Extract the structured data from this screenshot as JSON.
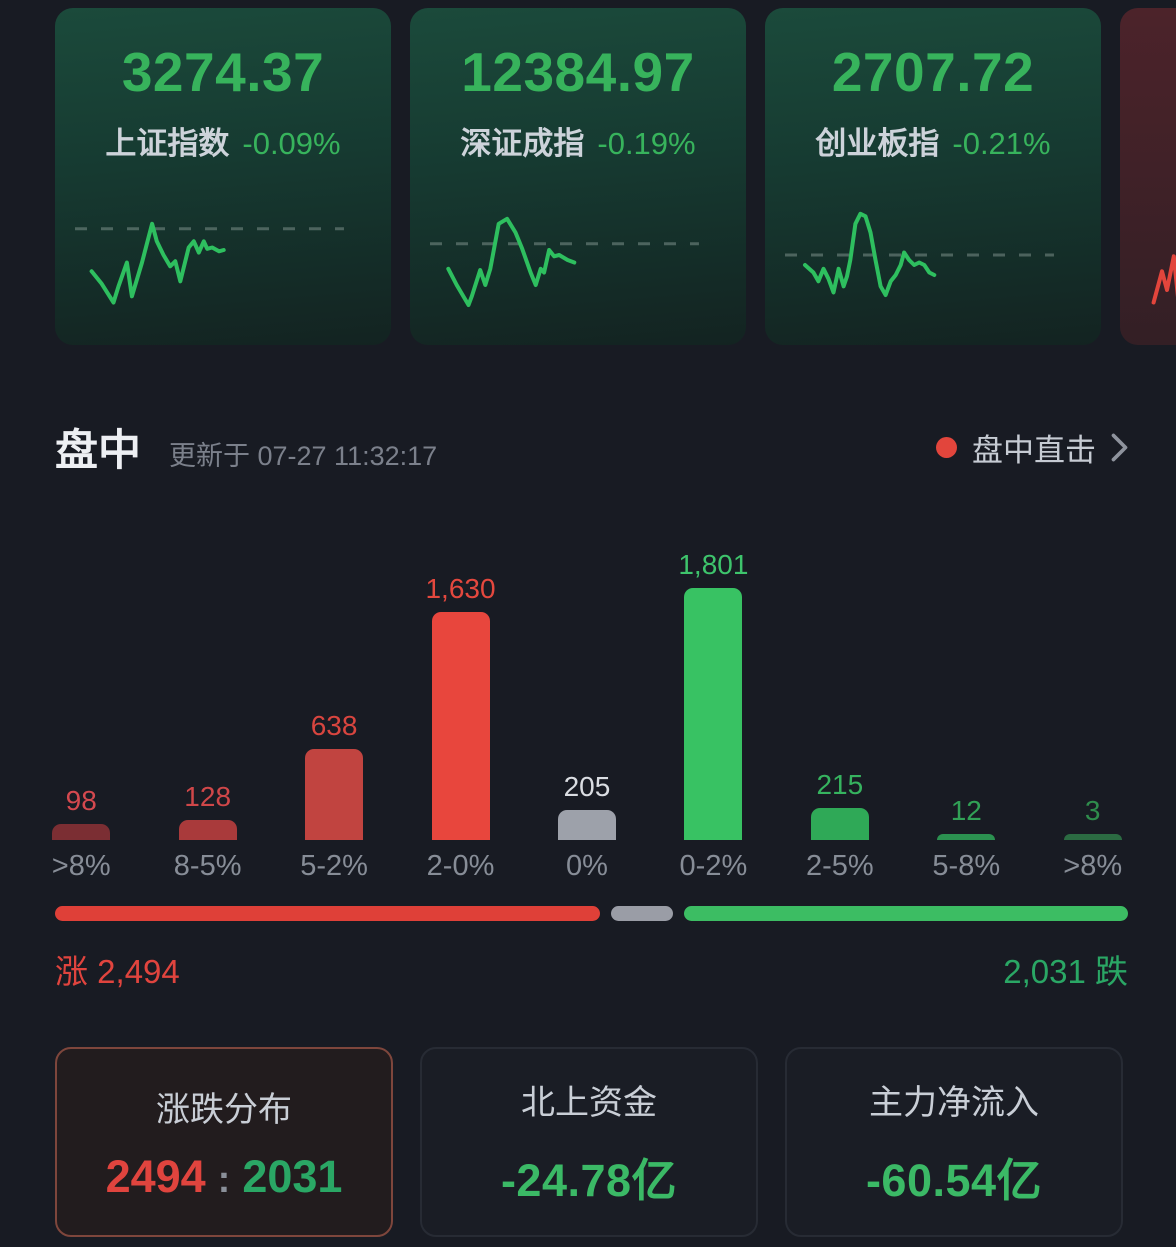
{
  "colors": {
    "page_bg": "#181b23",
    "index_green": "#37b35c",
    "index_name": "#cdd3da",
    "card_green_top": "#1b4a3b",
    "card_green_bottom": "#132321",
    "card_red_top": "#4c232a",
    "card_red_bottom": "#331f25",
    "up_red": "#e0443e",
    "down_green": "#2aa765",
    "flat_gray": "#9a9da6",
    "progress_red": "#df4038",
    "progress_green": "#3cbd63",
    "dot_red": "#e2453c",
    "header_text": "#edeff3",
    "muted_text": "#7b808b",
    "link_text": "#c6cbd3",
    "cat_label": "#878d97",
    "sum_title": "#c9ced6",
    "sum_value_green": "#3bb966",
    "active_border": "#7e463c"
  },
  "indices": [
    {
      "value": "3274.37",
      "name": "上证指数",
      "change": "-0.09%",
      "spark_color": "#2ebf5f",
      "dash_y": 23,
      "spark": [
        [
          10.9,
          57
        ],
        [
          13.9,
          67
        ],
        [
          17.4,
          82
        ],
        [
          18.9,
          69
        ],
        [
          21.4,
          50
        ],
        [
          22.9,
          77
        ],
        [
          25.9,
          50
        ],
        [
          28.9,
          19
        ],
        [
          30.3,
          33
        ],
        [
          32.3,
          44
        ],
        [
          34.3,
          53
        ],
        [
          35.8,
          49
        ],
        [
          37.3,
          65
        ],
        [
          39.8,
          38
        ],
        [
          41.3,
          33
        ],
        [
          42.8,
          42
        ],
        [
          44.3,
          33
        ],
        [
          45.3,
          39
        ],
        [
          46.8,
          38
        ],
        [
          48.8,
          41
        ],
        [
          50.2,
          40
        ]
      ]
    },
    {
      "value": "12384.97",
      "name": "深证成指",
      "change": "-0.19%",
      "spark_color": "#2ebf5f",
      "dash_y": 35,
      "spark": [
        [
          11.4,
          55
        ],
        [
          13.9,
          68
        ],
        [
          17.4,
          84
        ],
        [
          18.4,
          77
        ],
        [
          20.9,
          56
        ],
        [
          22.4,
          68
        ],
        [
          23.9,
          55
        ],
        [
          26.4,
          19
        ],
        [
          28.9,
          15
        ],
        [
          31.4,
          26
        ],
        [
          33.4,
          39
        ],
        [
          35.9,
          58
        ],
        [
          37.4,
          68
        ],
        [
          38.9,
          55
        ],
        [
          39.9,
          58
        ],
        [
          41.4,
          40
        ],
        [
          42.9,
          45
        ],
        [
          44.4,
          44
        ],
        [
          46.9,
          48
        ],
        [
          48.9,
          50
        ]
      ]
    },
    {
      "value": "2707.72",
      "name": "创业板指",
      "change": "-0.21%",
      "spark_color": "#2ebf5f",
      "dash_y": 44,
      "spark": [
        [
          11.9,
          52
        ],
        [
          14.4,
          58
        ],
        [
          15.9,
          65
        ],
        [
          17.4,
          55
        ],
        [
          18.9,
          63
        ],
        [
          20.4,
          74
        ],
        [
          21.9,
          55
        ],
        [
          23.4,
          69
        ],
        [
          24.4,
          61
        ],
        [
          25.4,
          48
        ],
        [
          26.9,
          19
        ],
        [
          28.4,
          11
        ],
        [
          29.9,
          13
        ],
        [
          31.4,
          26
        ],
        [
          32.9,
          48
        ],
        [
          34.4,
          69
        ],
        [
          35.9,
          76
        ],
        [
          37.4,
          65
        ],
        [
          38.9,
          60
        ],
        [
          40.4,
          52
        ],
        [
          41.4,
          42
        ],
        [
          42.9,
          48
        ],
        [
          44.4,
          52
        ],
        [
          45.9,
          50
        ],
        [
          47.4,
          52
        ],
        [
          48.9,
          58
        ],
        [
          50.4,
          60
        ]
      ]
    },
    {
      "partial": true,
      "spark_color": "#e2453c",
      "dash_y": null,
      "spark": [
        [
          10,
          82
        ],
        [
          12.5,
          57
        ],
        [
          14,
          72
        ],
        [
          16,
          45
        ],
        [
          17.5,
          84
        ]
      ]
    }
  ],
  "section": {
    "title": "盘中",
    "updated": "更新于 07-27 11:32:17",
    "live_link": "盘中直击"
  },
  "chart_data": {
    "type": "bar",
    "title": "",
    "xlabel": "",
    "ylabel": "",
    "ylim": [
      0,
      1801
    ],
    "grid": false,
    "legend": false,
    "categories": [
      ">8%",
      "8-5%",
      "5-2%",
      "2-0%",
      "0%",
      "0-2%",
      "2-5%",
      "5-8%",
      ">8%"
    ],
    "values": [
      98,
      128,
      638,
      1630,
      205,
      1801,
      215,
      12,
      3
    ],
    "value_labels": [
      "98",
      "128",
      "638",
      "1,630",
      "205",
      "1,801",
      "215",
      "12",
      "3"
    ],
    "bar_colors": [
      "#7b2e33",
      "#a93a3b",
      "#c14440",
      "#e8463d",
      "#9da1aa",
      "#38c263",
      "#2fa957",
      "#2b9150",
      "#2b6b42"
    ],
    "label_colors": [
      "#d4494f",
      "#cf4749",
      "#d8453f",
      "#e4483e",
      "#dadde2",
      "#3ec46c",
      "#36b35f",
      "#31a156",
      "#2f8c4c"
    ]
  },
  "breadth": {
    "up_label": "涨",
    "up_value": "2,494",
    "down_value": "2,031",
    "down_label": "跌",
    "up": 2494,
    "flat": 205,
    "down": 2031
  },
  "cards": [
    {
      "title": "涨跌分布",
      "value_up": "2494",
      "separator": ":",
      "value_down": "2031",
      "selected": true
    },
    {
      "title": "北上资金",
      "value": "-24.78亿"
    },
    {
      "title": "主力净流入",
      "value": "-60.54亿"
    }
  ]
}
